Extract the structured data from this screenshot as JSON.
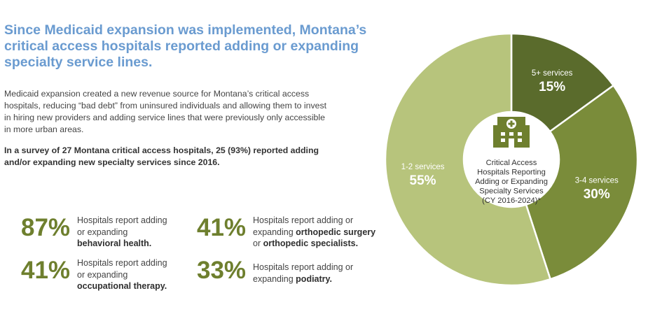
{
  "headline": "Since Medicaid expansion was implemented, Montana’s critical access hospitals reported adding or expanding specialty service lines.",
  "intro": "Medicaid expansion created a new revenue source for Montana’s critical access hospitals, reducing “bad debt” from uninsured individuals and allowing them to invest in hiring new providers and adding service lines that were previously only accessible in more urban areas.",
  "survey": "In a survey of 27 Montana critical access hospitals, 25 (93%) reported adding and/or expanding new specialty services since 2016.",
  "stats": [
    {
      "value": "87%",
      "line1": "Hospitals report adding",
      "line2": "or expanding",
      "line3": "behavioral health."
    },
    {
      "value": "41%",
      "line1": "Hospitals report adding or",
      "line2_pre": "expanding ",
      "line2_bold": "orthopedic surgery",
      "line3_pre": "or ",
      "line3_bold": "orthopedic specialists."
    },
    {
      "value": "41%",
      "line1": "Hospitals report adding",
      "line2": "or expanding",
      "line3": "occupational therapy."
    },
    {
      "value": "33%",
      "line1": "Hospitals report adding or",
      "line2_pre": "expanding ",
      "line2_bold": "podiatry."
    }
  ],
  "chart_data": {
    "type": "pie",
    "donut": true,
    "center_title_lines": [
      "Critical Access",
      "Hospitals Reporting",
      "Adding or Expanding",
      "Specialty Services",
      "(CY 2016-2024)*"
    ],
    "center_icon": "hospital-icon",
    "slices": [
      {
        "label": "5+ services",
        "value": 15,
        "value_label": "15%",
        "color": "#5a6b2c"
      },
      {
        "label": "3-4 services",
        "value": 30,
        "value_label": "30%",
        "color": "#7a8c3a"
      },
      {
        "label": "1-2 services",
        "value": 55,
        "value_label": "55%",
        "color": "#b7c47c"
      }
    ],
    "legend": "none"
  }
}
